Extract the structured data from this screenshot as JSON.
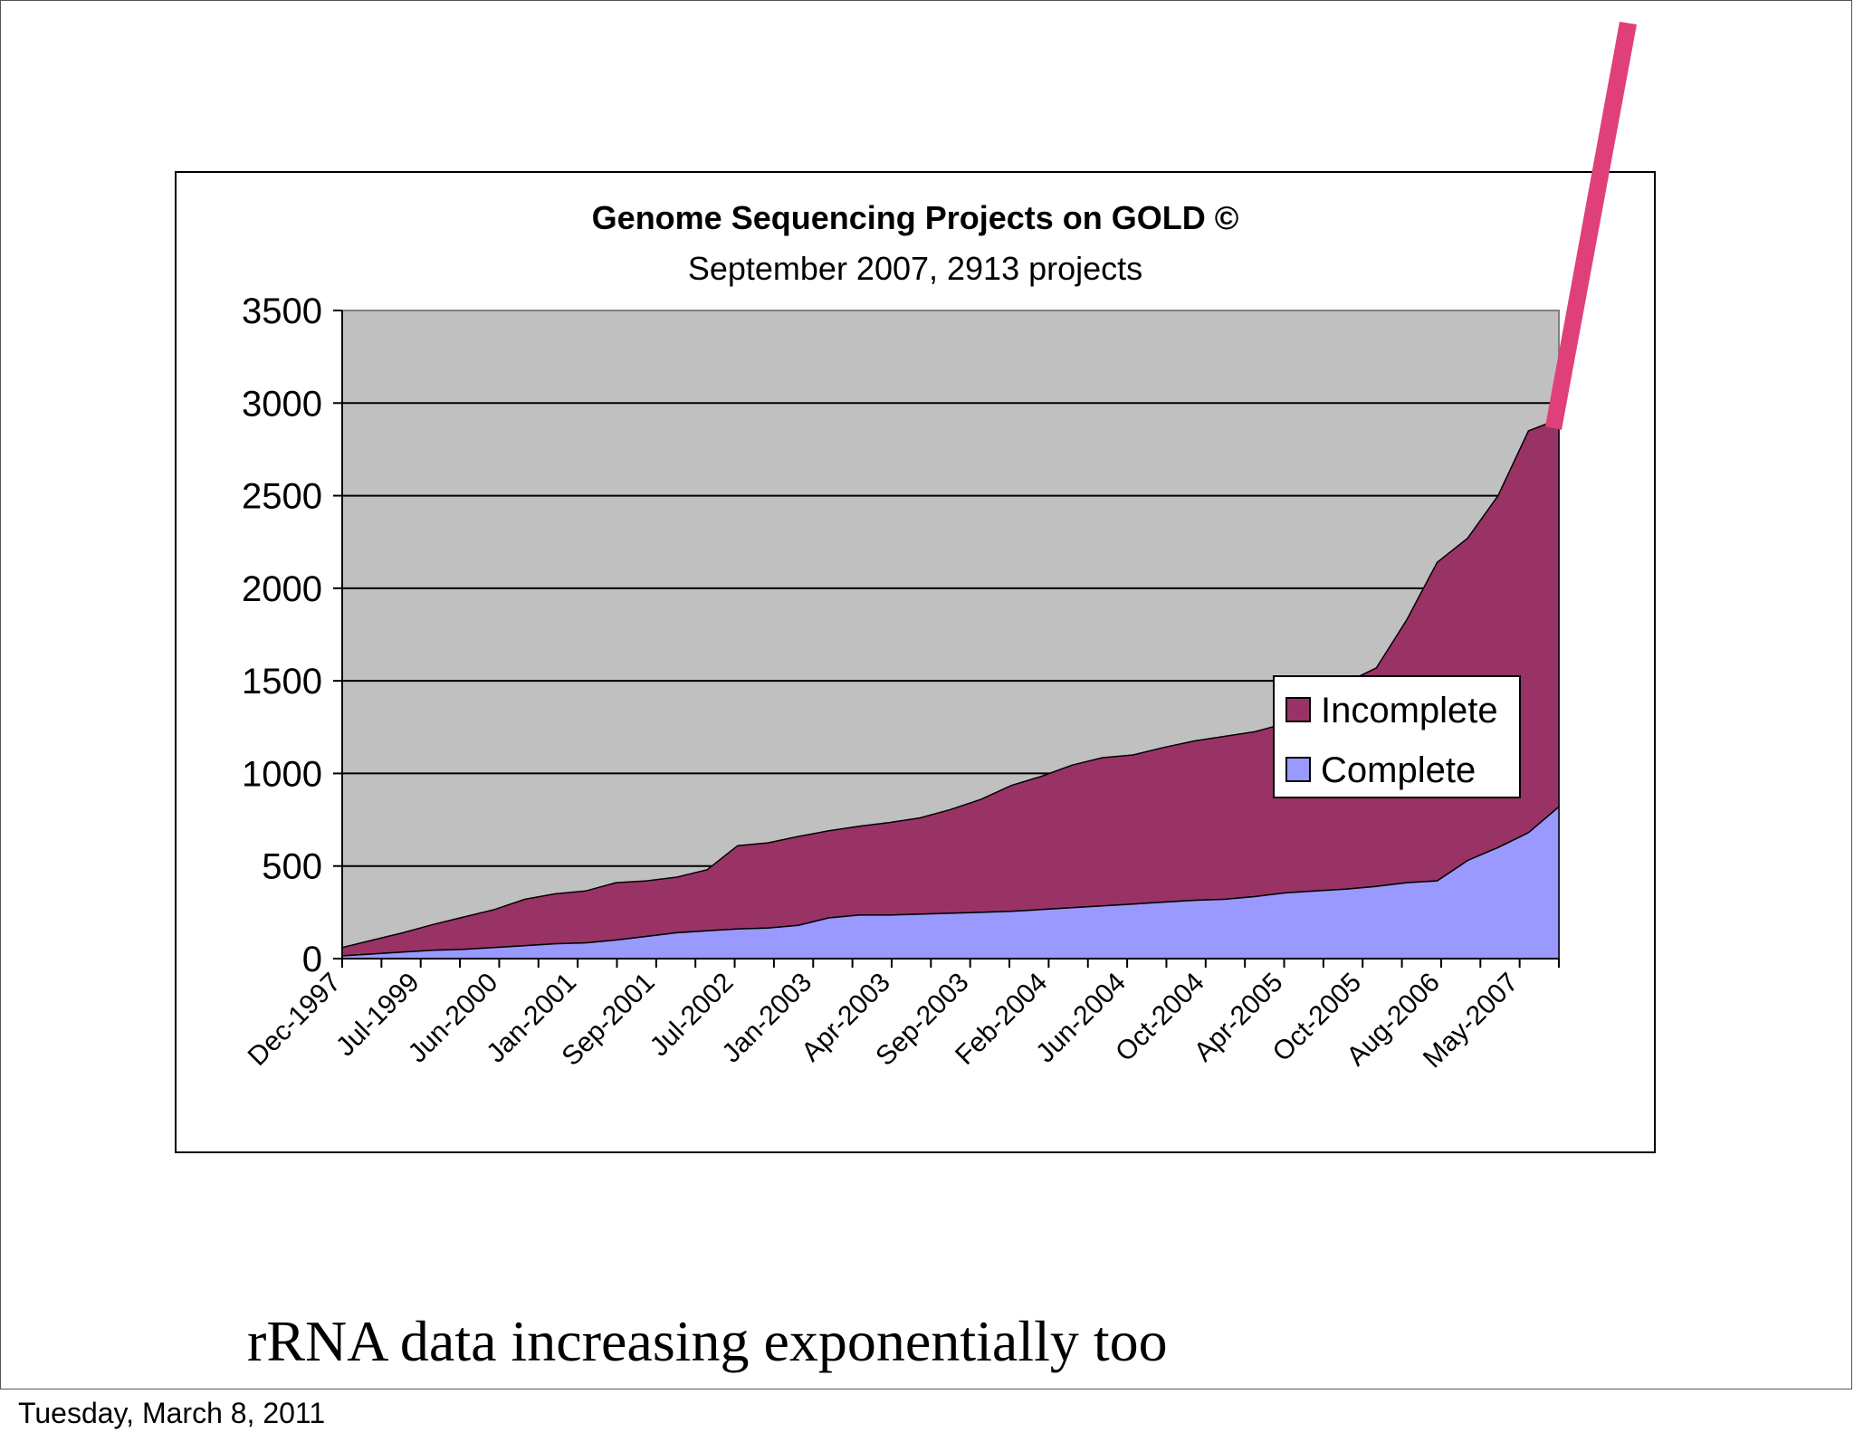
{
  "caption": "rRNA data increasing exponentially too",
  "footer_date": "Tuesday, March 8, 2011",
  "chart_data": {
    "type": "area",
    "stacked": true,
    "title": "Genome Sequencing Projects on GOLD ©",
    "subtitle": "September 2007, 2913 projects",
    "ylim": [
      0,
      3500
    ],
    "yticks": [
      0,
      500,
      1000,
      1500,
      2000,
      2500,
      3000,
      3500
    ],
    "grid": true,
    "legend_position": "right",
    "x_tick_labels": [
      "Dec-1997",
      "Jul-1999",
      "Jun-2000",
      "Jan-2001",
      "Sep-2001",
      "Jul-2002",
      "Jan-2003",
      "Apr-2003",
      "Sep-2003",
      "Feb-2004",
      "Jun-2004",
      "Oct-2004",
      "Apr-2005",
      "Oct-2005",
      "Aug-2006",
      "May-2007"
    ],
    "series": [
      {
        "name": "Complete",
        "color": "#9999ff",
        "values": [
          15,
          25,
          35,
          45,
          50,
          60,
          70,
          80,
          85,
          100,
          120,
          140,
          150,
          160,
          165,
          180,
          220,
          235,
          235,
          240,
          245,
          250,
          255,
          265,
          275,
          285,
          295,
          305,
          315,
          320,
          335,
          355,
          365,
          375,
          390,
          410,
          420,
          530,
          600,
          680,
          820
        ]
      },
      {
        "name": "Incomplete",
        "color": "#993366",
        "values": [
          45,
          75,
          105,
          140,
          175,
          205,
          250,
          270,
          280,
          310,
          300,
          300,
          330,
          450,
          460,
          480,
          470,
          480,
          500,
          520,
          560,
          610,
          680,
          720,
          770,
          800,
          805,
          835,
          860,
          880,
          890,
          915,
          1005,
          1115,
          1180,
          1420,
          1720,
          1740,
          1900,
          2170,
          2093
        ]
      }
    ],
    "annotation": {
      "type": "arrow-line",
      "color": "#e0407a"
    }
  }
}
